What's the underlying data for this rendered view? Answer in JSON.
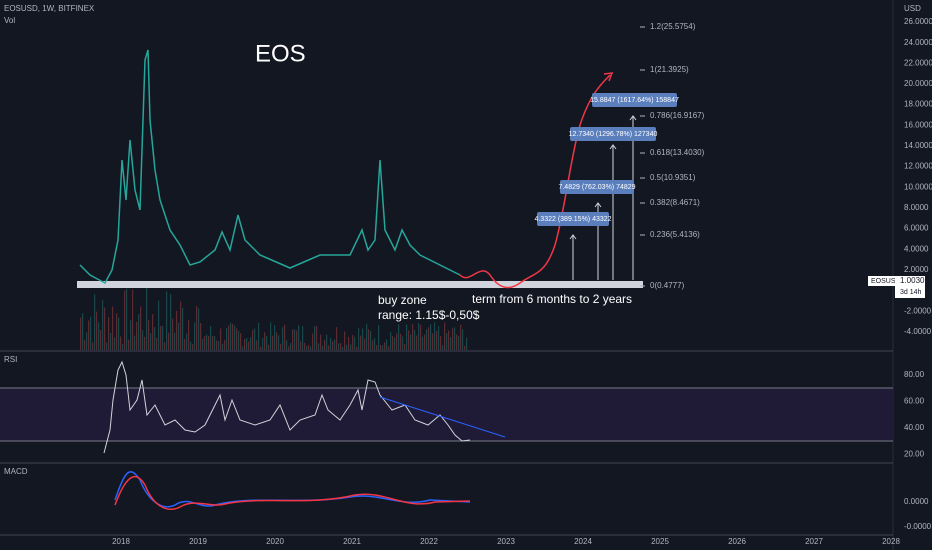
{
  "header": {
    "symbol": "EOSUSD, 1W, BITFINEX",
    "volume": "Vol"
  },
  "title": "EOS",
  "fib_levels": [
    "1.2(25.5754)",
    "1(21.3925)",
    "0.786(16.9167)",
    "0.618(13.4030)",
    "0.5(10.9351)",
    "0.382(8.4671)",
    "0.236(5.4136)",
    "0(0.4777)"
  ],
  "targets": [
    "15.8847 (1617.64%) 158847",
    "12.7340 (1296.78%) 127340",
    "7.4829 (762.03%) 74829",
    "4.3322 (389.15%) 43322"
  ],
  "annotations": {
    "buy_zone": "buy zone",
    "range": "range: 1.15$-0,50$",
    "term": "term from 6 months to 2 years"
  },
  "price_axis": {
    "unit": "USD",
    "labels": [
      "26.0000",
      "24.0000",
      "22.0000",
      "20.0000",
      "18.0000",
      "16.0000",
      "14.0000",
      "12.0000",
      "10.0000",
      "8.0000",
      "6.0000",
      "4.0000",
      "2.0000",
      "-2.0000",
      "-4.0000"
    ],
    "tag": {
      "symbol": "EOSUSD",
      "price": "1.0030",
      "countdown": "3d 14h"
    }
  },
  "rsi": {
    "title": "RSI",
    "labels": [
      "80.00",
      "60.00",
      "40.00",
      "20.00"
    ]
  },
  "macd": {
    "title": "MACD",
    "labels": [
      "0.0000",
      "-0.0000"
    ]
  },
  "time_axis": [
    "2018",
    "2019",
    "2020",
    "2021",
    "2022",
    "2023",
    "2024",
    "2025",
    "2026",
    "2027",
    "2028"
  ]
}
